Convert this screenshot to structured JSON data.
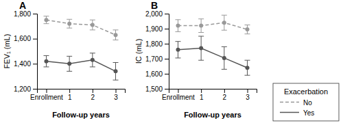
{
  "chart_data": [
    {
      "type": "line",
      "title": "A",
      "xlabel": "Follow-up years",
      "ylabel": "FEV₁ (mL)",
      "categories": [
        "Enrollment",
        "1",
        "2",
        "3"
      ],
      "series": [
        {
          "name": "No",
          "color": "#999999",
          "line_style": "dashed",
          "marker": "circle",
          "values": [
            1750,
            1720,
            1710,
            1630
          ],
          "errors": [
            30,
            35,
            40,
            40
          ]
        },
        {
          "name": "Yes",
          "color": "#555555",
          "line_style": "solid",
          "marker": "circle",
          "values": [
            1420,
            1400,
            1430,
            1340
          ],
          "errors": [
            45,
            60,
            55,
            70
          ]
        }
      ],
      "ylim": [
        1200,
        1800
      ],
      "yticks": [
        {
          "value": 1200,
          "label": "1,200"
        },
        {
          "value": 1400,
          "label": "1,400"
        },
        {
          "value": 1600,
          "label": "1,600"
        },
        {
          "value": 1800,
          "label": "1,800"
        }
      ],
      "grid": false
    },
    {
      "type": "line",
      "title": "B",
      "xlabel": "Follow-up years",
      "ylabel": "IC (mL)",
      "categories": [
        "Enrollment",
        "1",
        "2",
        "3"
      ],
      "series": [
        {
          "name": "No",
          "color": "#999999",
          "line_style": "dashed",
          "marker": "circle",
          "values": [
            1920,
            1920,
            1940,
            1895
          ],
          "errors": [
            40,
            45,
            50,
            30
          ]
        },
        {
          "name": "Yes",
          "color": "#555555",
          "line_style": "solid",
          "marker": "circle",
          "values": [
            1760,
            1770,
            1705,
            1640
          ],
          "errors": [
            55,
            80,
            75,
            50
          ]
        }
      ],
      "ylim": [
        1500,
        2000
      ],
      "yticks": [
        {
          "value": 1500,
          "label": "1,500"
        },
        {
          "value": 1600,
          "label": "1,600"
        },
        {
          "value": 1700,
          "label": "1,700"
        },
        {
          "value": 1800,
          "label": "1,800"
        },
        {
          "value": 1900,
          "label": "1,900"
        },
        {
          "value": 2000,
          "label": "2,000"
        }
      ],
      "grid": false,
      "legend": "lower right",
      "legend_title": "Exacerbation"
    }
  ]
}
